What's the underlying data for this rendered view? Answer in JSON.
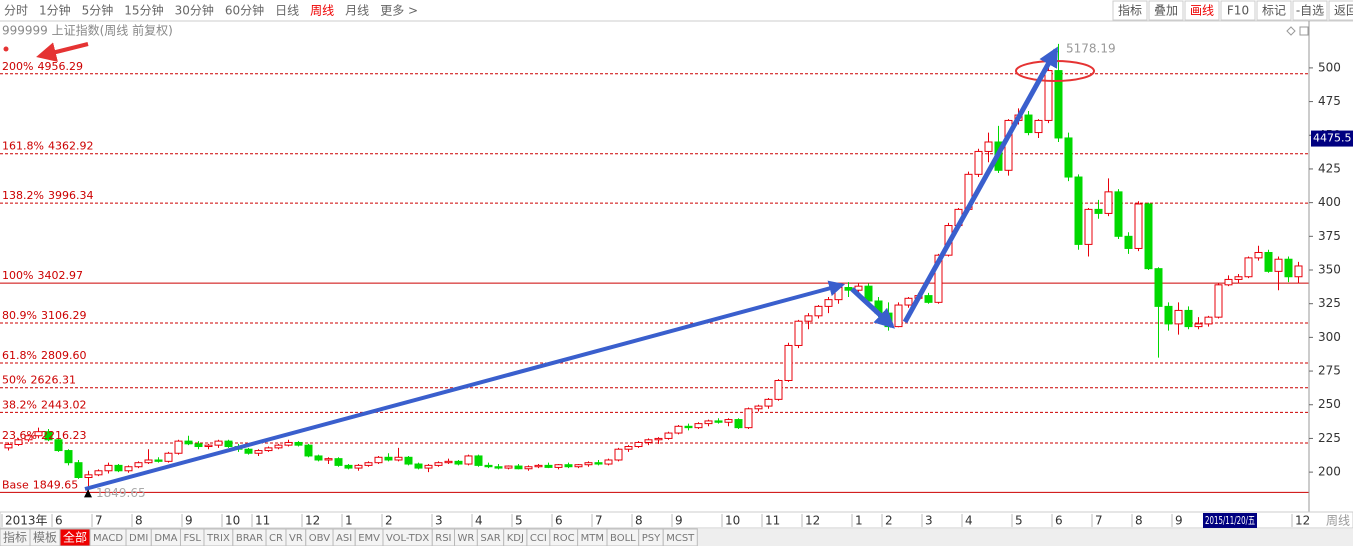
{
  "toolbar": {
    "periods": [
      "分时",
      "1分钟",
      "5分钟",
      "15分钟",
      "30分钟",
      "60分钟",
      "日线",
      "周线",
      "月线",
      "更多 >"
    ],
    "active_period": 7,
    "tools": [
      "指标",
      "叠加",
      "画线",
      "F10",
      "标记",
      "-自选",
      "返回"
    ],
    "active_tool": 2
  },
  "bottom_tabs": {
    "tabs": [
      "指标",
      "模板",
      "全部",
      "MACD",
      "DMI",
      "DMA",
      "FSL",
      "TRIX",
      "BRAR",
      "CR",
      "VR",
      "OBV",
      "ASI",
      "EMV",
      "VOL-TDX",
      "RSI",
      "WR",
      "SAR",
      "KDJ",
      "CCI",
      "ROC",
      "MTM",
      "BOLL",
      "PSY",
      "MCST"
    ],
    "active_tab": 2
  },
  "chart_data": {
    "type": "candlestick",
    "title": "999999 上证指数(周线 前复权)",
    "period_label": "周线",
    "up_color": "#e8000b",
    "down_color": "#00d800",
    "level_color": "#cc0000",
    "ylim": [
      1704,
      5348
    ],
    "yticks": [
      {
        "value": 5000,
        "label": "500"
      },
      {
        "value": 4750,
        "label": "475"
      },
      {
        "value": 4500,
        "label": "450"
      },
      {
        "value": 4250,
        "label": "425"
      },
      {
        "value": 4000,
        "label": "400"
      },
      {
        "value": 3750,
        "label": "375"
      },
      {
        "value": 3500,
        "label": "350"
      },
      {
        "value": 3250,
        "label": "325"
      },
      {
        "value": 3000,
        "label": "300"
      },
      {
        "value": 2750,
        "label": "275"
      },
      {
        "value": 2500,
        "label": "250"
      },
      {
        "value": 2250,
        "label": "225"
      },
      {
        "value": 2000,
        "label": "200"
      }
    ],
    "levels": [
      {
        "name": "200%",
        "price": 4956.29,
        "dashed": true
      },
      {
        "name": "161.8%",
        "price": 4362.92,
        "dashed": true
      },
      {
        "name": "138.2%",
        "price": 3996.34,
        "dashed": true
      },
      {
        "name": "100%",
        "price": 3402.97,
        "dashed": false
      },
      {
        "name": "80.9%",
        "price": 3106.29,
        "dashed": true
      },
      {
        "name": "61.8%",
        "price": {
          "value": 2809.6,
          "label": "2809.60"
        },
        "dashed": true
      },
      {
        "name": "50%",
        "price": 2626.31,
        "dashed": true
      },
      {
        "name": "38.2%",
        "price": 2443.02,
        "dashed": true
      },
      {
        "name": "23.6%",
        "price": 2216.23,
        "dashed": true
      },
      {
        "name": "Base",
        "price": 1849.65,
        "dashed": false
      }
    ],
    "cursor": {
      "date": "2015/11/20/五",
      "price": 4475.5
    },
    "categories": [
      "2013年",
      null,
      null,
      null,
      null,
      "6",
      null,
      null,
      null,
      "7",
      null,
      null,
      null,
      "8",
      null,
      null,
      null,
      null,
      "9",
      null,
      null,
      null,
      "10",
      null,
      null,
      "11",
      null,
      null,
      null,
      null,
      "12",
      null,
      null,
      null,
      "1",
      null,
      null,
      null,
      "2",
      null,
      null,
      null,
      null,
      "3",
      null,
      null,
      null,
      "4",
      null,
      null,
      null,
      "5",
      null,
      null,
      null,
      "6",
      null,
      null,
      null,
      "7",
      null,
      null,
      null,
      "8",
      null,
      null,
      null,
      "9",
      null,
      null,
      null,
      null,
      "10",
      null,
      null,
      null,
      "11",
      null,
      null,
      null,
      "12",
      null,
      null,
      null,
      null,
      "1",
      null,
      null,
      "2",
      null,
      null,
      null,
      "3",
      null,
      null,
      null,
      "4",
      null,
      null,
      null,
      null,
      "5",
      null,
      null,
      null,
      "6",
      null,
      null,
      null,
      "7",
      null,
      null,
      null,
      "8",
      null,
      null,
      null,
      "9",
      null,
      null,
      null,
      null,
      null,
      null,
      null,
      null,
      null,
      null,
      null,
      "12"
    ],
    "ohlc": [
      [
        2180,
        2220,
        2160,
        2205
      ],
      [
        2205,
        2250,
        2195,
        2240
      ],
      [
        2240,
        2280,
        2225,
        2270
      ],
      [
        2270,
        2330,
        2250,
        2300
      ],
      [
        2300,
        2320,
        2230,
        2240
      ],
      [
        2240,
        2250,
        2150,
        2160
      ],
      [
        2160,
        2170,
        2050,
        2070
      ],
      [
        2070,
        2090,
        1950,
        1960
      ],
      [
        1960,
        2010,
        1849.65,
        1980
      ],
      [
        1980,
        2020,
        1970,
        2010
      ],
      [
        2010,
        2070,
        1990,
        2050
      ],
      [
        2050,
        2060,
        2000,
        2010
      ],
      [
        2010,
        2050,
        1995,
        2040
      ],
      [
        2040,
        2080,
        2030,
        2070
      ],
      [
        2070,
        2170,
        2060,
        2090
      ],
      [
        2090,
        2110,
        2070,
        2080
      ],
      [
        2080,
        2150,
        2070,
        2140
      ],
      [
        2140,
        2240,
        2130,
        2230
      ],
      [
        2230,
        2270,
        2200,
        2210
      ],
      [
        2210,
        2230,
        2170,
        2190
      ],
      [
        2190,
        2210,
        2170,
        2200
      ],
      [
        2200,
        2240,
        2180,
        2230
      ],
      [
        2230,
        2240,
        2180,
        2190
      ],
      [
        2190,
        2210,
        2150,
        2170
      ],
      [
        2170,
        2180,
        2130,
        2140
      ],
      [
        2140,
        2170,
        2120,
        2160
      ],
      [
        2160,
        2190,
        2150,
        2180
      ],
      [
        2180,
        2210,
        2170,
        2200
      ],
      [
        2200,
        2240,
        2190,
        2220
      ],
      [
        2220,
        2230,
        2190,
        2200
      ],
      [
        2200,
        2210,
        2110,
        2120
      ],
      [
        2120,
        2130,
        2080,
        2090
      ],
      [
        2090,
        2110,
        2060,
        2100
      ],
      [
        2100,
        2110,
        2040,
        2050
      ],
      [
        2050,
        2060,
        2020,
        2030
      ],
      [
        2030,
        2060,
        2010,
        2050
      ],
      [
        2050,
        2080,
        2040,
        2070
      ],
      [
        2070,
        2120,
        2060,
        2110
      ],
      [
        2110,
        2140,
        2080,
        2090
      ],
      [
        2090,
        2180,
        2080,
        2110
      ],
      [
        2110,
        2120,
        2050,
        2060
      ],
      [
        2060,
        2070,
        2020,
        2030
      ],
      [
        2030,
        2060,
        2000,
        2050
      ],
      [
        2050,
        2080,
        2040,
        2070
      ],
      [
        2070,
        2100,
        2060,
        2080
      ],
      [
        2080,
        2090,
        2050,
        2060
      ],
      [
        2060,
        2130,
        2050,
        2120
      ],
      [
        2120,
        2130,
        2040,
        2050
      ],
      [
        2050,
        2070,
        2030,
        2040
      ],
      [
        2040,
        2060,
        2020,
        2030
      ],
      [
        2030,
        2050,
        2020,
        2045
      ],
      [
        2045,
        2060,
        2020,
        2025
      ],
      [
        2025,
        2050,
        2010,
        2040
      ],
      [
        2040,
        2060,
        2030,
        2050
      ],
      [
        2050,
        2070,
        2030,
        2035
      ],
      [
        2035,
        2060,
        2020,
        2055
      ],
      [
        2055,
        2070,
        2030,
        2040
      ],
      [
        2040,
        2060,
        2030,
        2055
      ],
      [
        2055,
        2080,
        2040,
        2070
      ],
      [
        2070,
        2090,
        2050,
        2060
      ],
      [
        2060,
        2100,
        2050,
        2090
      ],
      [
        2090,
        2180,
        2080,
        2170
      ],
      [
        2170,
        2200,
        2150,
        2190
      ],
      [
        2190,
        2230,
        2180,
        2220
      ],
      [
        2220,
        2250,
        2200,
        2240
      ],
      [
        2240,
        2260,
        2210,
        2250
      ],
      [
        2250,
        2300,
        2240,
        2290
      ],
      [
        2290,
        2350,
        2280,
        2340
      ],
      [
        2340,
        2360,
        2310,
        2330
      ],
      [
        2330,
        2370,
        2320,
        2360
      ],
      [
        2360,
        2390,
        2340,
        2380
      ],
      [
        2380,
        2400,
        2360,
        2370
      ],
      [
        2370,
        2400,
        2340,
        2390
      ],
      [
        2390,
        2400,
        2320,
        2330
      ],
      [
        2330,
        2480,
        2320,
        2470
      ],
      [
        2470,
        2500,
        2450,
        2490
      ],
      [
        2490,
        2550,
        2470,
        2540
      ],
      [
        2540,
        2690,
        2530,
        2680
      ],
      [
        2680,
        2960,
        2670,
        2940
      ],
      [
        2940,
        3130,
        2920,
        3120
      ],
      [
        3120,
        3180,
        3060,
        3160
      ],
      [
        3160,
        3240,
        3140,
        3230
      ],
      [
        3230,
        3300,
        3180,
        3280
      ],
      [
        3280,
        3380,
        3250,
        3370
      ],
      [
        3370,
        3410,
        3300,
        3350
      ],
      [
        3350,
        3400,
        3300,
        3380
      ],
      [
        3380,
        3400,
        3250,
        3270
      ],
      [
        3270,
        3300,
        3150,
        3180
      ],
      [
        3180,
        3260,
        3050,
        3080
      ],
      [
        3080,
        3260,
        3075,
        3240
      ],
      [
        3240,
        3300,
        3220,
        3290
      ],
      [
        3290,
        3330,
        3270,
        3310
      ],
      [
        3310,
        3330,
        3250,
        3260
      ],
      [
        3260,
        3620,
        3250,
        3610
      ],
      [
        3610,
        3850,
        3600,
        3830
      ],
      [
        3830,
        3960,
        3800,
        3950
      ],
      [
        3950,
        4230,
        3930,
        4210
      ],
      [
        4210,
        4400,
        4190,
        4380
      ],
      [
        4380,
        4520,
        4300,
        4450
      ],
      [
        4450,
        4570,
        4220,
        4240
      ],
      [
        4240,
        4620,
        4200,
        4610
      ],
      [
        4610,
        4700,
        4580,
        4650
      ],
      [
        4650,
        4680,
        4500,
        4520
      ],
      [
        4520,
        4620,
        4480,
        4610
      ],
      [
        4610,
        5000,
        4590,
        4980
      ],
      [
        4980,
        5178.19,
        4450,
        4480
      ],
      [
        4480,
        4520,
        4160,
        4190
      ],
      [
        4190,
        4210,
        3650,
        3690
      ],
      [
        3690,
        3960,
        3600,
        3950
      ],
      [
        3950,
        4020,
        3880,
        3920
      ],
      [
        3920,
        4180,
        3900,
        4080
      ],
      [
        4080,
        4100,
        3730,
        3750
      ],
      [
        3750,
        3780,
        3620,
        3660
      ],
      [
        3660,
        4010,
        3640,
        3990
      ],
      [
        3990,
        4000,
        3500,
        3510
      ],
      [
        3510,
        3520,
        2850,
        3230
      ],
      [
        3230,
        3260,
        3050,
        3100
      ],
      [
        3100,
        3260,
        3020,
        3200
      ],
      [
        3200,
        3230,
        3060,
        3080
      ],
      [
        3080,
        3150,
        3060,
        3100
      ],
      [
        3100,
        3160,
        3080,
        3150
      ],
      [
        3150,
        3400,
        3140,
        3390
      ],
      [
        3390,
        3460,
        3380,
        3430
      ],
      [
        3430,
        3470,
        3400,
        3450
      ],
      [
        3450,
        3600,
        3440,
        3590
      ],
      [
        3590,
        3680,
        3570,
        3630
      ],
      [
        3630,
        3650,
        3480,
        3490
      ],
      [
        3490,
        3600,
        3350,
        3580
      ],
      [
        3580,
        3600,
        3410,
        3450
      ],
      [
        3450,
        3560,
        3400,
        3530
      ]
    ]
  }
}
